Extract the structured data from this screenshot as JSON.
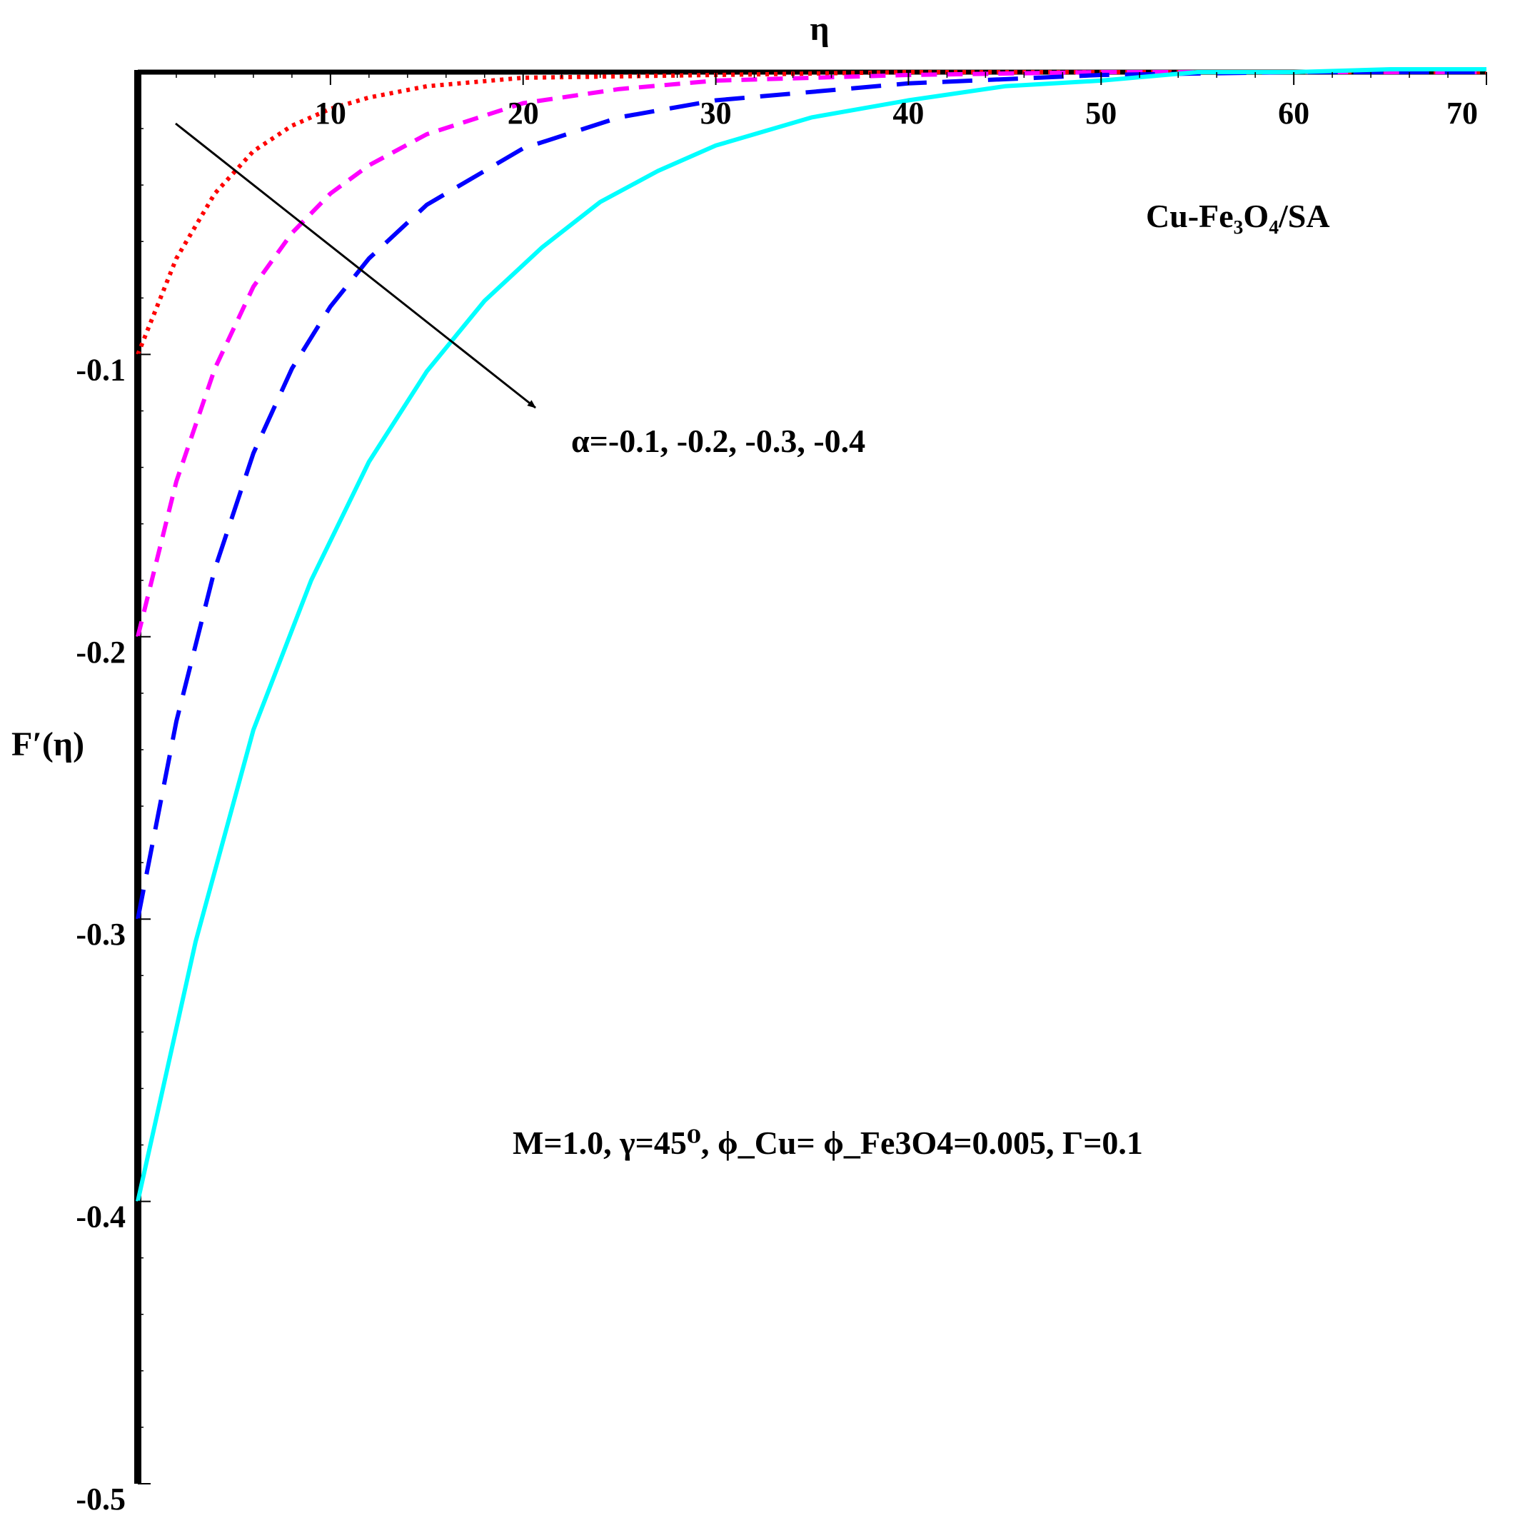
{
  "chart_data": {
    "type": "line",
    "title": "",
    "xlabel": "η",
    "ylabel": "F′(η)",
    "xlim": [
      0,
      70
    ],
    "ylim": [
      -0.5,
      0
    ],
    "x_ticks": [
      10,
      20,
      30,
      40,
      50,
      60,
      70
    ],
    "x_tick_labels": [
      "10",
      "20",
      "30",
      "40",
      "50",
      "60",
      "70"
    ],
    "y_ticks": [
      -0.1,
      -0.2,
      -0.3,
      -0.4,
      -0.5
    ],
    "y_tick_labels": [
      "-0.1",
      "-0.2",
      "-0.3",
      "-0.4",
      "-0.5"
    ],
    "x_axis_position": "top",
    "grid": false,
    "legend": null,
    "series": [
      {
        "style": "dotted",
        "color": "#ff0000",
        "x": [
          0,
          2,
          4,
          6,
          8,
          10,
          12,
          15,
          20,
          30,
          40,
          70
        ],
        "y": [
          -0.1,
          -0.066,
          -0.043,
          -0.028,
          -0.019,
          -0.013,
          -0.009,
          -0.005,
          -0.002,
          -0.001,
          0,
          0
        ]
      },
      {
        "style": "dashed",
        "color": "#ff00ff",
        "x": [
          0,
          2,
          4,
          6,
          8,
          10,
          12,
          15,
          20,
          25,
          30,
          40,
          50,
          70
        ],
        "y": [
          -0.2,
          -0.145,
          -0.105,
          -0.076,
          -0.057,
          -0.043,
          -0.033,
          -0.022,
          -0.011,
          -0.006,
          -0.003,
          -0.001,
          0,
          0
        ]
      },
      {
        "style": "long-dashed",
        "color": "#0000ff",
        "x": [
          0,
          2,
          4,
          6,
          8,
          10,
          12,
          15,
          20,
          25,
          30,
          40,
          50,
          60,
          70
        ],
        "y": [
          -0.3,
          -0.23,
          -0.176,
          -0.135,
          -0.105,
          -0.083,
          -0.066,
          -0.047,
          -0.027,
          -0.016,
          -0.01,
          -0.004,
          -0.001,
          0,
          0
        ]
      },
      {
        "style": "solid",
        "color": "#00ffff",
        "x": [
          0,
          3,
          6,
          9,
          12,
          15,
          18,
          21,
          24,
          27,
          30,
          35,
          40,
          45,
          50,
          55,
          60,
          65,
          70
        ],
        "y": [
          -0.4,
          -0.308,
          -0.233,
          -0.18,
          -0.138,
          -0.106,
          -0.081,
          -0.062,
          -0.046,
          -0.035,
          -0.026,
          -0.016,
          -0.01,
          -0.005,
          -0.003,
          0,
          0,
          0.001,
          0.001
        ]
      }
    ],
    "annotations": {
      "nanofluid": "Cu-Fe₃O₄/SA",
      "alpha": "α=-0.1, -0.2, -0.3, -0.4",
      "params": "M=1.0, γ=45⁰, ϕ_Cu= ϕ_Fe3O4=0.005,  Γ=0.1"
    }
  }
}
